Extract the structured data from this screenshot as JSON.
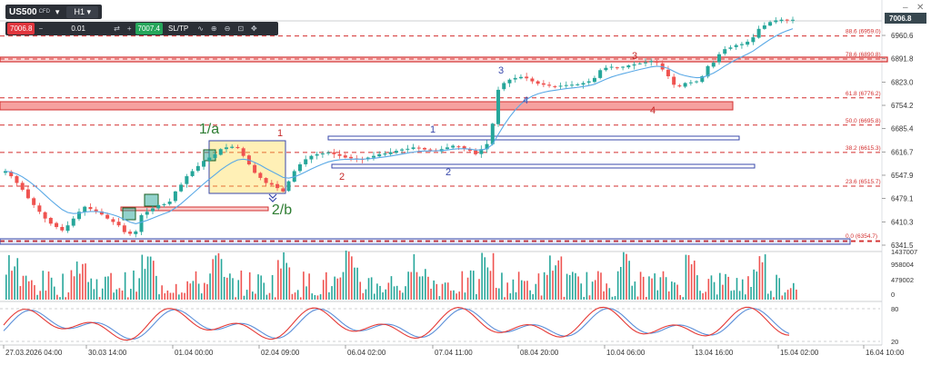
{
  "header": {
    "symbol": "US500",
    "symbol_suffix": "CFD",
    "timeframe": "H1",
    "sell_price": "7006.8",
    "quantity": "0.01",
    "buy_price": "7007.4",
    "sltp_label": "SL/TP",
    "minus_label": "−",
    "plus_label": "+",
    "caret_icon": "▾",
    "swap_icon": "⇄",
    "chart_type_icon": "∿",
    "zoom_in_icon": "⊕",
    "zoom_out_icon": "⊖",
    "fit_icon": "⊡",
    "crosshair_icon": "✥",
    "window_minimize": "–",
    "window_close": "✕"
  },
  "colors": {
    "bull": "#26a69a",
    "bear": "#ef5350",
    "ma": "#5aa9e6",
    "level_red": "#d32f2f",
    "blue_box": "#3949ab",
    "label_green": "#2e7d32",
    "label_blue": "#3949ab",
    "label_red": "#c62828",
    "stoch_k": "#e53935",
    "stoch_d": "#5b8fd9"
  },
  "chart_data": {
    "type": "candlestick",
    "symbol": "US500",
    "timeframe": "H1",
    "last_price": 7006.8,
    "y_ticks": [
      6960.6,
      6891.8,
      6823.0,
      6754.2,
      6685.4,
      6616.7,
      6547.9,
      6479.1,
      6410.3,
      6341.5
    ],
    "y_tick_labels": [
      "6960.6",
      "6891.8",
      "6823.0",
      "6754.2",
      "6685.4",
      "6616.7",
      "6547.9",
      "6479.1",
      "6410.3",
      "6341.5"
    ],
    "last_price_label": "7006.8",
    "x_labels": [
      "27.03.2026 04:00",
      "30.03 14:00",
      "01.04 00:00",
      "02.04 09:00",
      "06.04 02:00",
      "07.04 11:00",
      "08.04 20:00",
      "10.04 06:00",
      "13.04 16:00",
      "15.04 02:00",
      "16.04 10:00"
    ],
    "fib_levels": [
      {
        "label": "88.6 (6959.0)",
        "price": 6959.0
      },
      {
        "label": "78.6 (6890.8)",
        "price": 6890.8
      },
      {
        "label": "61.8 (6776.2)",
        "price": 6776.2
      },
      {
        "label": "50.0 (6695.8)",
        "price": 6695.8
      },
      {
        "label": "38.2 (6615.3)",
        "price": 6615.3
      },
      {
        "label": "23.6 (6515.7)",
        "price": 6515.7
      },
      {
        "label": "0.0 (6354.7)",
        "price": 6354.7
      }
    ],
    "wave_labels": [
      "1/a",
      "2/b",
      "1",
      "2",
      "1",
      "2",
      "3",
      "4",
      "3",
      "4"
    ],
    "volume_ticks": [
      "1437007",
      "958004",
      "479002",
      "0"
    ],
    "stoch_ticks": [
      "80",
      "20"
    ],
    "ohlc_close_path": [
      6560,
      6545,
      6525,
      6505,
      6480,
      6460,
      6440,
      6420,
      6405,
      6395,
      6385,
      6400,
      6420,
      6440,
      6455,
      6448,
      6440,
      6432,
      6420,
      6410,
      6400,
      6380,
      6375,
      6382,
      6430,
      6440,
      6450,
      6460,
      6462,
      6470,
      6500,
      6520,
      6545,
      6560,
      6575,
      6590,
      6600,
      6610,
      6625,
      6630,
      6632,
      6628,
      6605,
      6580,
      6555,
      6540,
      6525,
      6520,
      6510,
      6500,
      6530,
      6560,
      6580,
      6595,
      6605,
      6610,
      6612,
      6615,
      6610,
      6605,
      6600,
      6598,
      6596,
      6594,
      6600,
      6605,
      6610,
      6612,
      6616,
      6620,
      6624,
      6626,
      6630,
      6628,
      6624,
      6622,
      6620,
      6625,
      6630,
      6635,
      6632,
      6626,
      6620,
      6610,
      6625,
      6640,
      6700,
      6800,
      6820,
      6830,
      6835,
      6838,
      6834,
      6825,
      6818,
      6815,
      6812,
      6810,
      6812,
      6814,
      6815,
      6816,
      6820,
      6825,
      6835,
      6858,
      6865,
      6868,
      6866,
      6868,
      6872,
      6875,
      6878,
      6881,
      6885,
      6880,
      6860,
      6840,
      6815,
      6810,
      6820,
      6822,
      6825,
      6840,
      6870,
      6880,
      6905,
      6920,
      6925,
      6932,
      6935,
      6942,
      6955,
      6980,
      6990,
      7000,
      7005,
      7007,
      7006,
      7006.8
    ]
  }
}
